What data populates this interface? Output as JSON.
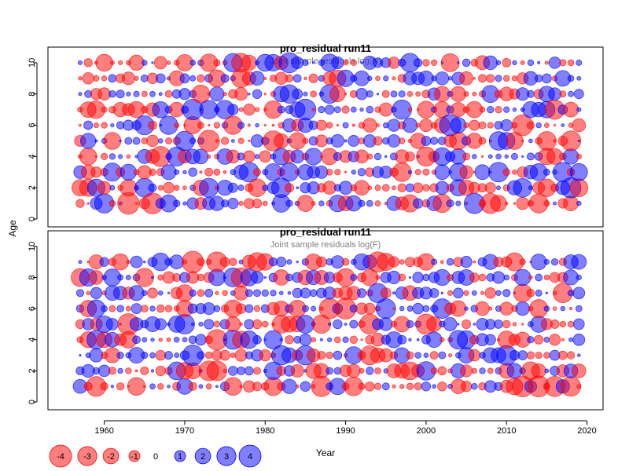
{
  "chart_data": [
    {
      "type": "scatter",
      "title": "pro_residual run11",
      "subtitle": "Joint sample residuals log(N)",
      "ylabel": "Age",
      "xlabel": "Year",
      "xlim": [
        1953,
        2022
      ],
      "ylim": [
        -0.5,
        11
      ],
      "yticks": [
        0,
        2,
        4,
        6,
        8,
        10
      ],
      "xticks": [
        1960,
        1970,
        1980,
        1990,
        2000,
        2010,
        2020
      ],
      "ages": [
        1,
        2,
        3,
        4,
        5,
        6,
        7,
        8,
        9,
        10
      ],
      "year_start": 1957,
      "year_end": 2019,
      "points_note": "bubble area ~ |residual|; red = negative, blue = positive",
      "seed": 11
    },
    {
      "type": "scatter",
      "title": "pro_residual run11",
      "subtitle": "Joint sample residuals log(F)",
      "ylabel": "Age",
      "xlabel": "Year",
      "xlim": [
        1953,
        2022
      ],
      "ylim": [
        -0.5,
        11
      ],
      "yticks": [
        0,
        2,
        4,
        6,
        8,
        10
      ],
      "xticks": [
        1960,
        1970,
        1980,
        1990,
        2000,
        2010,
        2020
      ],
      "ages": [
        1,
        2,
        3,
        4,
        5,
        6,
        7,
        8,
        9
      ],
      "year_start": 1957,
      "year_end": 2019,
      "points_note": "bubble area ~ |residual|; red = negative, blue = positive",
      "seed": 29
    }
  ],
  "axis_labels": {
    "y": "Age",
    "x": "Year"
  },
  "legend": {
    "values": [
      -4,
      -3,
      -2,
      -1,
      0,
      1,
      2,
      3,
      4
    ],
    "labels": [
      "-4",
      "-3",
      "-2",
      "-1",
      "0",
      "1",
      "2",
      "3",
      "4"
    ]
  },
  "colors": {
    "negative_fill": "#ff0000",
    "negative_stroke": "#ff0000",
    "positive_fill": "#0000ff",
    "positive_stroke": "#0000ff",
    "fill_opacity": "0.5"
  }
}
